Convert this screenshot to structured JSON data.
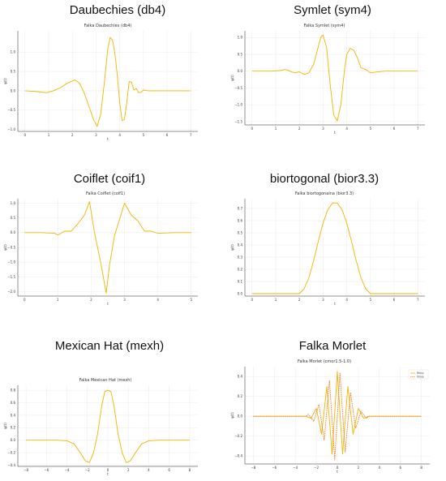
{
  "chart_data": [
    {
      "type": "line",
      "heading": "Daubechies (db4)",
      "title": "Falka Daubechies (db4)",
      "xlabel": "t",
      "ylabel": "ψ(t)",
      "xlim": [
        -0.3,
        7.3
      ],
      "ylim": [
        -1.05,
        1.55
      ],
      "xticks": [
        0,
        1,
        2,
        3,
        4,
        5,
        6,
        7
      ],
      "yticks": [
        -1.0,
        -0.5,
        0.0,
        0.5,
        1.0
      ],
      "ytick_labels": [
        "−1.0",
        "−0.5",
        "0.0",
        "0.5",
        "1.0"
      ],
      "grid": true,
      "series": [
        {
          "color": "#f2b300",
          "dashed": false,
          "x": [
            0,
            0.5,
            0.9,
            1.2,
            1.5,
            1.8,
            2.1,
            2.3,
            2.5,
            2.7,
            2.9,
            3.05,
            3.2,
            3.35,
            3.5,
            3.6,
            3.7,
            3.8,
            3.9,
            4.0,
            4.1,
            4.2,
            4.3,
            4.4,
            4.5,
            4.6,
            4.7,
            4.8,
            4.9,
            5.0,
            5.2,
            5.5,
            6.0,
            6.5,
            7.0
          ],
          "y": [
            0,
            -0.02,
            -0.05,
            0.0,
            0.08,
            0.2,
            0.28,
            0.2,
            -0.05,
            -0.4,
            -0.75,
            -0.92,
            -0.6,
            0.2,
            1.1,
            1.38,
            1.3,
            0.95,
            0.4,
            -0.3,
            -0.77,
            -0.74,
            -0.3,
            0.24,
            0.22,
            0.02,
            0.06,
            -0.05,
            -0.04,
            0.02,
            0.0,
            0.0,
            0.0,
            0.0,
            0.0
          ]
        }
      ]
    },
    {
      "type": "line",
      "heading": "Symlet (sym4)",
      "title": "Falka Symlet (sym4)",
      "xlabel": "t",
      "ylabel": "ψ(t)",
      "xlim": [
        -0.3,
        7.3
      ],
      "ylim": [
        -1.6,
        1.2
      ],
      "xticks": [
        0,
        1,
        2,
        3,
        4,
        5,
        6,
        7
      ],
      "yticks": [
        -1.5,
        -1.0,
        -0.5,
        0.0,
        0.5,
        1.0
      ],
      "ytick_labels": [
        "−1.5",
        "−1.0",
        "−0.5",
        "0.0",
        "0.5",
        "1.0"
      ],
      "grid": true,
      "series": [
        {
          "color": "#f2b300",
          "dashed": false,
          "x": [
            0,
            0.8,
            1.2,
            1.4,
            1.6,
            1.8,
            2.0,
            2.2,
            2.4,
            2.6,
            2.75,
            2.9,
            3.0,
            3.15,
            3.3,
            3.45,
            3.6,
            3.75,
            3.9,
            4.0,
            4.15,
            4.3,
            4.45,
            4.6,
            4.8,
            5.0,
            5.3,
            5.6,
            6.0,
            7.0
          ],
          "y": [
            0,
            0.0,
            0.02,
            0.05,
            0.0,
            -0.05,
            -0.02,
            -0.1,
            -0.05,
            0.2,
            0.6,
            1.0,
            1.08,
            0.7,
            -0.4,
            -1.3,
            -1.48,
            -1.0,
            0.0,
            0.5,
            0.68,
            0.62,
            0.4,
            0.1,
            0.05,
            -0.05,
            -0.02,
            0.0,
            0.0,
            0.0
          ]
        }
      ]
    },
    {
      "type": "line",
      "heading": "Coiflet (coif1)",
      "title": "Falka Coiflet (coif1)",
      "xlabel": "t",
      "ylabel": "ψ(t)",
      "xlim": [
        -0.2,
        5.2
      ],
      "ylim": [
        -2.15,
        1.15
      ],
      "xticks": [
        0,
        1,
        2,
        3,
        4,
        5
      ],
      "yticks": [
        -2.0,
        -1.5,
        -1.0,
        -0.5,
        0.0,
        0.5,
        1.0
      ],
      "ytick_labels": [
        "−2.0",
        "−1.5",
        "−1.0",
        "−0.5",
        "0.0",
        "0.5",
        "1.0"
      ],
      "grid": true,
      "series": [
        {
          "color": "#f2b300",
          "dashed": false,
          "x": [
            0,
            0.5,
            0.9,
            1.0,
            1.2,
            1.4,
            1.6,
            1.8,
            1.95,
            2.1,
            2.3,
            2.45,
            2.55,
            2.7,
            2.85,
            3.0,
            3.2,
            3.4,
            3.6,
            3.8,
            4.0,
            4.5,
            5.0
          ],
          "y": [
            0,
            0.0,
            -0.02,
            -0.08,
            0.05,
            0.05,
            0.3,
            0.6,
            1.05,
            0.0,
            -1.1,
            -2.05,
            -1.1,
            -0.1,
            0.45,
            1.0,
            0.6,
            0.4,
            0.05,
            0.05,
            -0.02,
            0.0,
            0.0
          ]
        }
      ]
    },
    {
      "type": "line",
      "heading": "biortogonal (bior3.3)",
      "title": "Falka biortogonalna (bior3.3)",
      "xlabel": "t",
      "ylabel": "ψ(t)",
      "xlim": [
        -0.3,
        7.3
      ],
      "ylim": [
        -0.02,
        0.78
      ],
      "xticks": [
        0,
        1,
        2,
        3,
        4,
        5,
        6,
        7
      ],
      "yticks": [
        0.0,
        0.1,
        0.2,
        0.3,
        0.4,
        0.5,
        0.6,
        0.7
      ],
      "ytick_labels": [
        "0.0",
        "0.1",
        "0.2",
        "0.3",
        "0.4",
        "0.5",
        "0.6",
        "0.7"
      ],
      "grid": true,
      "series": [
        {
          "color": "#f2b300",
          "dashed": false,
          "x": [
            0,
            1.5,
            2.0,
            2.2,
            2.4,
            2.6,
            2.8,
            3.0,
            3.2,
            3.4,
            3.6,
            3.8,
            4.0,
            4.2,
            4.4,
            4.6,
            4.8,
            5.0,
            5.5,
            7.0
          ],
          "y": [
            0,
            0.0,
            0.0,
            0.04,
            0.13,
            0.27,
            0.43,
            0.58,
            0.69,
            0.745,
            0.745,
            0.69,
            0.58,
            0.43,
            0.27,
            0.13,
            0.04,
            0.0,
            0.0,
            0.0
          ]
        }
      ]
    },
    {
      "type": "line",
      "heading": "Mexican Hat (mexh)",
      "title": "Falka Mexican Hat (mexh)",
      "xlabel": "t",
      "ylabel": "ψ(t)",
      "xlim": [
        -8.8,
        8.8
      ],
      "ylim": [
        -0.42,
        0.88
      ],
      "xticks": [
        -8,
        -6,
        -4,
        -2,
        0,
        2,
        4,
        6,
        8
      ],
      "xtick_labels": [
        "−8",
        "−6",
        "−4",
        "−2",
        "0",
        "2",
        "4",
        "6",
        "8"
      ],
      "yticks": [
        -0.4,
        -0.2,
        0.0,
        0.2,
        0.4,
        0.6,
        0.8
      ],
      "ytick_labels": [
        "−0.4",
        "−0.2",
        "0.0",
        "0.2",
        "0.4",
        "0.6",
        "0.8"
      ],
      "grid": true,
      "series": [
        {
          "color": "#f2b300",
          "dashed": false,
          "x": [
            -8,
            -5,
            -4,
            -3.3,
            -2.7,
            -2.2,
            -1.8,
            -1.4,
            -1.0,
            -0.6,
            -0.3,
            0,
            0.3,
            0.6,
            1.0,
            1.4,
            1.8,
            2.2,
            2.7,
            3.3,
            4,
            5,
            8
          ],
          "y": [
            0,
            0,
            -0.01,
            -0.06,
            -0.2,
            -0.33,
            -0.36,
            -0.2,
            0.1,
            0.55,
            0.78,
            0.8,
            0.78,
            0.55,
            0.1,
            -0.2,
            -0.36,
            -0.33,
            -0.2,
            -0.06,
            -0.01,
            0,
            0
          ]
        }
      ]
    },
    {
      "type": "line",
      "heading": "Falka Morlet",
      "title": "Falka Morlet (cmor1.5-1.0)",
      "xlabel": "t",
      "ylabel": "ψ(t)",
      "xlim": [
        -8.8,
        8.8
      ],
      "ylim": [
        -0.48,
        0.5
      ],
      "xticks": [
        -8,
        -6,
        -4,
        -2,
        0,
        2,
        4,
        6,
        8
      ],
      "xtick_labels": [
        "−8",
        "−6",
        "−4",
        "−2",
        "0",
        "2",
        "4",
        "6",
        "8"
      ],
      "yticks": [
        -0.4,
        -0.2,
        0.0,
        0.2,
        0.4
      ],
      "ytick_labels": [
        "−0.4",
        "−0.2",
        "0.0",
        "0.2",
        "0.4"
      ],
      "grid": true,
      "legend": "top-right",
      "series": [
        {
          "name": "Re(ψ)",
          "color": "#f2b300",
          "dashed": false,
          "x": [
            -8,
            -3,
            -2.5,
            -2.0,
            -1.5,
            -1.0,
            -0.5,
            0,
            0.5,
            1.0,
            1.5,
            2.0,
            2.5,
            3,
            8
          ],
          "y": [
            0,
            0.0,
            -0.02,
            0.08,
            -0.18,
            0.3,
            -0.38,
            0.45,
            -0.38,
            0.3,
            -0.18,
            0.08,
            -0.02,
            0.0,
            0
          ]
        },
        {
          "name": "Im(ψ)",
          "color": "#f07a20",
          "dashed": true,
          "x": [
            -8,
            -3,
            -2.75,
            -2.25,
            -1.75,
            -1.25,
            -0.75,
            -0.25,
            0.25,
            0.75,
            1.25,
            1.75,
            2.25,
            2.75,
            3,
            8
          ],
          "y": [
            0,
            0.0,
            0.02,
            -0.05,
            0.12,
            -0.24,
            0.36,
            -0.44,
            0.44,
            -0.36,
            0.24,
            -0.12,
            0.05,
            -0.02,
            0.0,
            0
          ]
        }
      ]
    }
  ]
}
